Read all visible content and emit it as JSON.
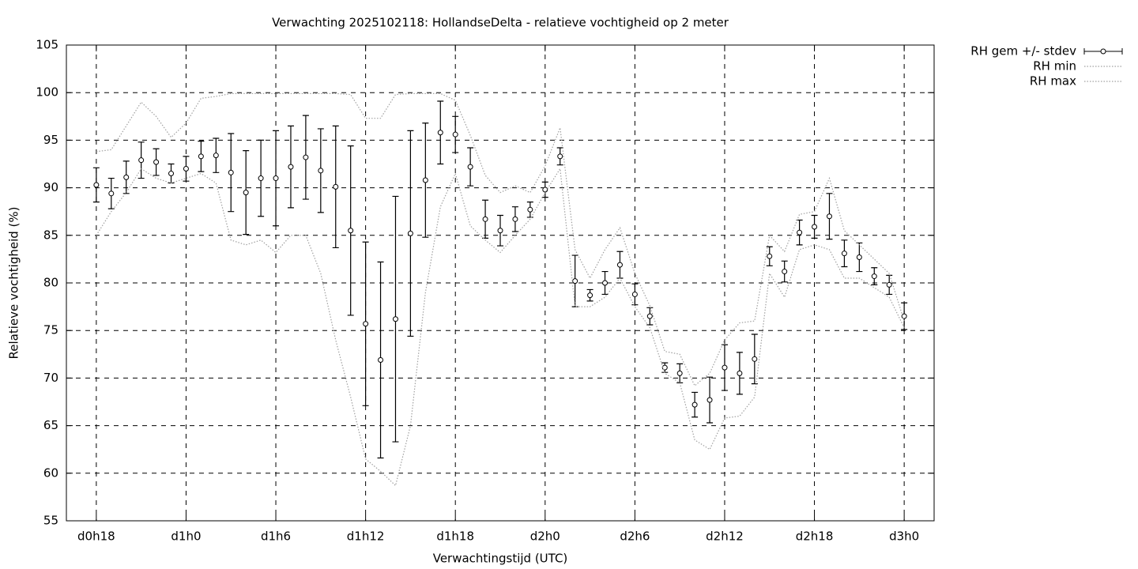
{
  "chart_data": {
    "type": "errorbar",
    "title": "Verwachting 2025102118: HollandseDelta - relatieve vochtigheid op 2 meter",
    "x_label": "Verwachtingstijd (UTC)",
    "y_label": "Relatieve vochtigheid (%)",
    "x": [
      18,
      19,
      20,
      21,
      22,
      23,
      24,
      25,
      26,
      27,
      28,
      29,
      30,
      31,
      32,
      33,
      34,
      35,
      36,
      37,
      38,
      39,
      40,
      41,
      42,
      43,
      44,
      45,
      46,
      47,
      48,
      49,
      50,
      51,
      52,
      53,
      54,
      55,
      56,
      57,
      58,
      59,
      60,
      61,
      62,
      63,
      64,
      65,
      66,
      67,
      68,
      69,
      70,
      71,
      72
    ],
    "xlim": [
      16,
      74
    ],
    "xticks": [
      {
        "value": 18,
        "label": "d0h18"
      },
      {
        "value": 24,
        "label": "d1h0"
      },
      {
        "value": 30,
        "label": "d1h6"
      },
      {
        "value": 36,
        "label": "d1h12"
      },
      {
        "value": 42,
        "label": "d1h18"
      },
      {
        "value": 48,
        "label": "d2h0"
      },
      {
        "value": 54,
        "label": "d2h6"
      },
      {
        "value": 60,
        "label": "d2h12"
      },
      {
        "value": 66,
        "label": "d2h18"
      },
      {
        "value": 72,
        "label": "d3h0"
      }
    ],
    "ylim": [
      55,
      105
    ],
    "yticks": [
      55,
      60,
      65,
      70,
      75,
      80,
      85,
      90,
      95,
      100,
      105
    ],
    "grid": true,
    "series": [
      {
        "name": "RH gem +/- stdev",
        "color": "#000000",
        "values": [
          90.3,
          89.4,
          91.1,
          92.9,
          92.7,
          91.5,
          92.0,
          93.3,
          93.4,
          91.6,
          89.5,
          91.0,
          91.0,
          92.2,
          93.2,
          91.8,
          90.1,
          85.5,
          75.7,
          71.9,
          76.2,
          85.2,
          90.8,
          95.8,
          95.6,
          92.2,
          86.7,
          85.5,
          86.7,
          87.7,
          89.8,
          93.3,
          80.2,
          78.7,
          80.0,
          81.9,
          78.8,
          76.5,
          71.1,
          70.5,
          67.2,
          67.7,
          71.1,
          70.5,
          72.0,
          82.8,
          81.2,
          85.3,
          85.9,
          87.0,
          83.1,
          82.7,
          80.7,
          79.8,
          76.5
        ],
        "errors": [
          1.8,
          1.6,
          1.7,
          1.9,
          1.4,
          1.0,
          1.3,
          1.6,
          1.8,
          4.1,
          4.4,
          4.0,
          5.0,
          4.3,
          4.4,
          4.4,
          6.4,
          8.9,
          8.6,
          10.3,
          12.9,
          10.8,
          6.0,
          3.3,
          1.9,
          2.0,
          2.0,
          1.6,
          1.3,
          0.8,
          0.8,
          0.9,
          2.7,
          0.6,
          1.2,
          1.4,
          1.1,
          0.9,
          0.5,
          1.0,
          1.3,
          2.4,
          2.4,
          2.2,
          2.6,
          1.0,
          1.1,
          1.3,
          1.2,
          2.4,
          1.4,
          1.5,
          0.9,
          1.0,
          1.4
        ]
      },
      {
        "name": "RH min",
        "color": "#a0a0a0",
        "values": [
          85,
          87.5,
          89.5,
          92,
          91,
          90.5,
          91,
          91.5,
          90.5,
          84.5,
          84,
          84.5,
          83.2,
          85,
          85,
          81,
          74,
          68,
          61.5,
          60.2,
          58.7,
          65,
          79,
          88,
          91.5,
          86,
          84.5,
          83.2,
          85,
          86.7,
          89.5,
          92,
          77.5,
          77.5,
          78.5,
          80.5,
          77.5,
          75.3,
          70.5,
          69.5,
          63.5,
          62.5,
          65.8,
          66,
          68,
          81,
          78.5,
          83.5,
          84,
          83.5,
          80.5,
          80.5,
          79.5,
          78.5,
          75.3
        ]
      },
      {
        "name": "RH max",
        "color": "#a0a0a0",
        "values": [
          93.8,
          94,
          96.5,
          99,
          97.5,
          95.3,
          96.8,
          99.4,
          99.6,
          99.9,
          99.9,
          99.9,
          99.9,
          99.9,
          99.9,
          99.9,
          99.9,
          99.8,
          97.3,
          97.3,
          99.8,
          99.9,
          99.9,
          99.9,
          99.2,
          95.5,
          91.3,
          89.5,
          90.2,
          89.5,
          92.3,
          96.3,
          83.5,
          80.5,
          83.5,
          85.8,
          81,
          77.6,
          72.8,
          72.5,
          69.2,
          70.5,
          74,
          75.8,
          76,
          85,
          83.3,
          87.2,
          87.5,
          91,
          85.5,
          84,
          82.5,
          81,
          76
        ]
      }
    ]
  }
}
